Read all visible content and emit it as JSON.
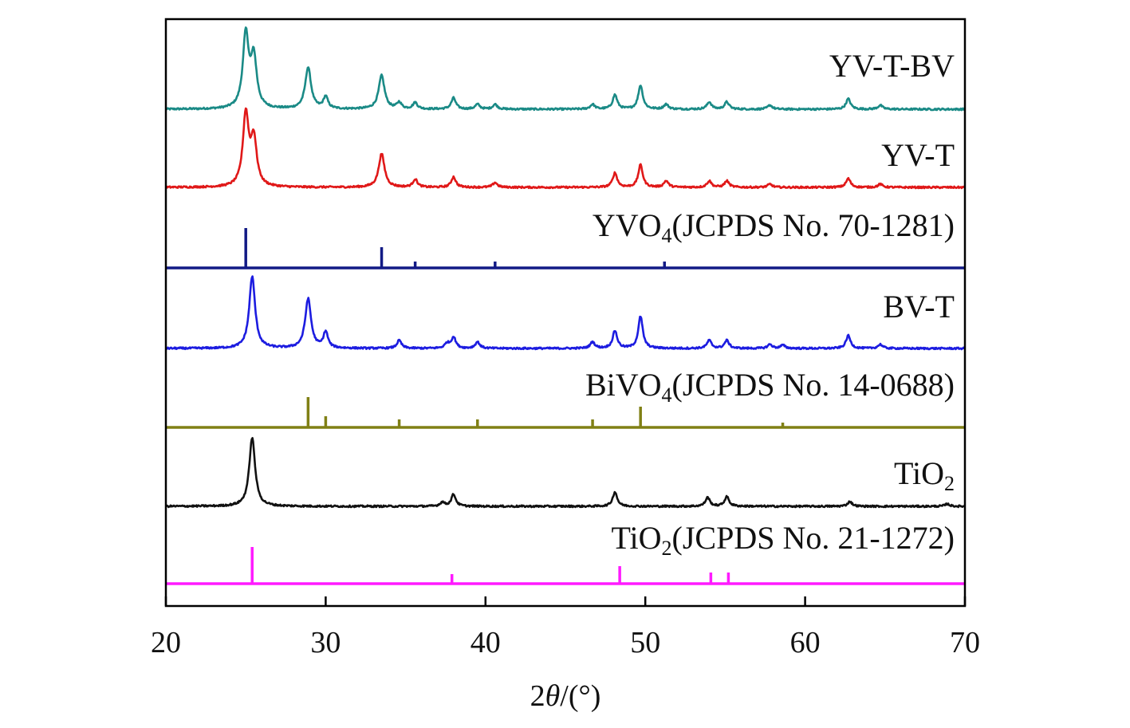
{
  "chart_data": {
    "type": "line",
    "xlabel": "2θ/(°)",
    "xlim": [
      20,
      70
    ],
    "x_ticks": [
      "20",
      "30",
      "40",
      "50",
      "60",
      "70"
    ],
    "ylabel": "",
    "grid": false,
    "legend": "inline labels at right",
    "series": [
      {
        "name": "YV-T-BV",
        "kind": "pattern",
        "color": "#1a8a86",
        "peaks": [
          {
            "x": 25.0,
            "h": 92
          },
          {
            "x": 25.5,
            "h": 62
          },
          {
            "x": 28.9,
            "h": 52
          },
          {
            "x": 30.0,
            "h": 15
          },
          {
            "x": 33.5,
            "h": 42
          },
          {
            "x": 34.6,
            "h": 8
          },
          {
            "x": 35.6,
            "h": 8
          },
          {
            "x": 38.0,
            "h": 14
          },
          {
            "x": 39.5,
            "h": 6
          },
          {
            "x": 40.6,
            "h": 6
          },
          {
            "x": 46.7,
            "h": 6
          },
          {
            "x": 48.1,
            "h": 18
          },
          {
            "x": 49.7,
            "h": 30
          },
          {
            "x": 51.3,
            "h": 6
          },
          {
            "x": 54.0,
            "h": 9
          },
          {
            "x": 55.1,
            "h": 9
          },
          {
            "x": 57.8,
            "h": 5
          },
          {
            "x": 62.7,
            "h": 13
          },
          {
            "x": 64.7,
            "h": 5
          }
        ]
      },
      {
        "name": "YV-T",
        "kind": "pattern",
        "color": "#e01818",
        "peaks": [
          {
            "x": 25.0,
            "h": 90
          },
          {
            "x": 25.5,
            "h": 58
          },
          {
            "x": 33.5,
            "h": 42
          },
          {
            "x": 35.6,
            "h": 10
          },
          {
            "x": 38.0,
            "h": 13
          },
          {
            "x": 40.6,
            "h": 6
          },
          {
            "x": 48.1,
            "h": 18
          },
          {
            "x": 49.7,
            "h": 28
          },
          {
            "x": 51.3,
            "h": 8
          },
          {
            "x": 54.0,
            "h": 8
          },
          {
            "x": 55.1,
            "h": 8
          },
          {
            "x": 57.8,
            "h": 4
          },
          {
            "x": 62.7,
            "h": 11
          },
          {
            "x": 64.7,
            "h": 4
          }
        ]
      },
      {
        "name": "YVO4(JCPDS No. 70-1281)",
        "name_main": "YVO",
        "name_sub": "4",
        "name_rest": "(JCPDS No. 70-1281)",
        "kind": "reference",
        "color": "#121a85",
        "peaks": [
          {
            "x": 25.0,
            "h": 50
          },
          {
            "x": 33.5,
            "h": 26
          },
          {
            "x": 35.6,
            "h": 8
          },
          {
            "x": 40.6,
            "h": 8
          },
          {
            "x": 51.2,
            "h": 8
          }
        ]
      },
      {
        "name": "BV-T",
        "kind": "pattern",
        "color": "#1c1ce0",
        "peaks": [
          {
            "x": 25.4,
            "h": 90
          },
          {
            "x": 28.9,
            "h": 62
          },
          {
            "x": 30.0,
            "h": 20
          },
          {
            "x": 34.6,
            "h": 10
          },
          {
            "x": 37.6,
            "h": 6
          },
          {
            "x": 38.0,
            "h": 14
          },
          {
            "x": 39.5,
            "h": 8
          },
          {
            "x": 46.7,
            "h": 8
          },
          {
            "x": 48.1,
            "h": 22
          },
          {
            "x": 49.7,
            "h": 40
          },
          {
            "x": 54.0,
            "h": 10
          },
          {
            "x": 55.1,
            "h": 10
          },
          {
            "x": 57.8,
            "h": 5
          },
          {
            "x": 58.6,
            "h": 4
          },
          {
            "x": 62.7,
            "h": 16
          },
          {
            "x": 64.7,
            "h": 5
          }
        ]
      },
      {
        "name": "BiVO4(JCPDS No. 14-0688)",
        "name_main": "BiVO",
        "name_sub": "4",
        "name_rest": "(JCPDS No. 14-0688)",
        "kind": "reference",
        "color": "#808015",
        "peaks": [
          {
            "x": 28.9,
            "h": 38
          },
          {
            "x": 30.0,
            "h": 14
          },
          {
            "x": 34.6,
            "h": 10
          },
          {
            "x": 39.5,
            "h": 10
          },
          {
            "x": 46.7,
            "h": 10
          },
          {
            "x": 49.7,
            "h": 26
          },
          {
            "x": 58.6,
            "h": 6
          }
        ]
      },
      {
        "name": "TiO2",
        "name_main": "TiO",
        "name_sub": "2",
        "name_rest": "",
        "kind": "pattern",
        "color": "#111111",
        "peaks": [
          {
            "x": 25.4,
            "h": 86
          },
          {
            "x": 37.3,
            "h": 5
          },
          {
            "x": 38.0,
            "h": 15
          },
          {
            "x": 48.1,
            "h": 18
          },
          {
            "x": 53.9,
            "h": 11
          },
          {
            "x": 55.1,
            "h": 12
          },
          {
            "x": 62.8,
            "h": 6
          },
          {
            "x": 68.9,
            "h": 3
          }
        ]
      },
      {
        "name": "TiO2(JCPDS No. 21-1272)",
        "name_main": "TiO",
        "name_sub": "2",
        "name_rest": "(JCPDS No. 21-1272)",
        "kind": "reference",
        "color": "#ff1aff",
        "peaks": [
          {
            "x": 25.4,
            "h": 46
          },
          {
            "x": 37.9,
            "h": 12
          },
          {
            "x": 48.4,
            "h": 22
          },
          {
            "x": 54.1,
            "h": 14
          },
          {
            "x": 55.2,
            "h": 14
          }
        ]
      }
    ]
  }
}
